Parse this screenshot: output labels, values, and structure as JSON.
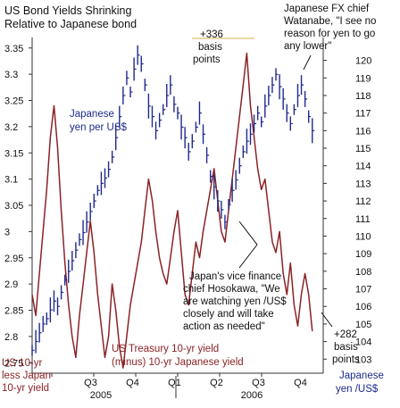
{
  "chart_data": {
    "type": "line",
    "title": "US Bond Yields Shrinking",
    "subtitle": "Relative to Japanese bond",
    "x_ticks": [
      "Q3",
      "Q4",
      "Q1",
      "Q2",
      "Q3",
      "Q4"
    ],
    "x_years": [
      "2005",
      "2006"
    ],
    "y_left": {
      "label": [
        "US 10-yr",
        "less Japan",
        "10-yr yield"
      ],
      "ticks": [
        "3.35",
        "3.3",
        "3.25",
        "3.2",
        "3.15",
        "3.1",
        "3.05",
        "3",
        "2.95",
        "2.9",
        "2.85",
        "2.8",
        "2.75"
      ],
      "ylim": [
        2.73,
        3.37
      ]
    },
    "y_right": {
      "label": [
        "Japanese",
        "yen /US$"
      ],
      "ticks": [
        "120",
        "119",
        "118",
        "117",
        "116",
        "115",
        "114",
        "113",
        "112",
        "111",
        "110",
        "109",
        "108",
        "107",
        "106",
        "105",
        "104",
        "103"
      ],
      "ylim": [
        102.2,
        121.3
      ]
    },
    "xlim": [
      0,
      24
    ],
    "series": [
      {
        "name": "US Treasury 10-yr yield (minus) 10-yr Japanese yield",
        "axis": "left",
        "color": "#8b2226",
        "x": [
          0.0,
          0.3,
          0.6,
          0.9,
          1.2,
          1.5,
          1.8,
          2.1,
          2.4,
          2.7,
          3.0,
          3.3,
          3.6,
          3.9,
          4.2,
          4.5,
          4.8,
          5.1,
          5.4,
          5.7,
          6.0,
          6.3,
          6.6,
          6.9,
          7.2,
          7.5,
          7.8,
          8.1,
          8.4,
          8.7,
          9.0,
          9.3,
          9.6,
          9.9,
          10.2,
          10.5,
          10.8,
          11.1,
          11.4,
          11.7,
          12.0,
          12.3,
          12.6,
          12.9,
          13.2,
          13.5,
          13.8,
          14.1,
          14.4,
          14.7,
          15.0,
          15.3,
          15.6,
          15.9,
          16.2,
          16.5,
          16.8,
          17.1,
          17.4,
          17.7,
          18.0,
          18.3,
          18.6,
          18.9,
          19.2,
          19.5,
          19.8,
          20.1,
          20.4,
          20.7,
          21.0,
          21.3,
          21.6,
          21.9,
          22.2,
          22.5,
          22.8,
          23.1
        ],
        "y": [
          2.88,
          2.84,
          2.92,
          3.0,
          3.08,
          3.18,
          3.24,
          3.16,
          3.04,
          2.94,
          2.86,
          2.8,
          2.76,
          2.84,
          2.9,
          2.96,
          3.02,
          2.96,
          2.88,
          2.82,
          2.76,
          2.8,
          2.9,
          2.85,
          2.78,
          2.74,
          2.8,
          2.86,
          2.9,
          2.94,
          2.98,
          3.04,
          3.1,
          3.06,
          3.0,
          2.95,
          2.92,
          2.9,
          2.95,
          3.0,
          3.04,
          2.96,
          2.88,
          2.86,
          2.92,
          2.98,
          2.95,
          3.0,
          3.04,
          3.08,
          3.12,
          3.06,
          3.0,
          2.98,
          3.04,
          3.1,
          3.16,
          3.22,
          3.28,
          3.34,
          3.24,
          3.18,
          3.12,
          3.08,
          3.1,
          3.04,
          2.98,
          2.96,
          3.0,
          2.92,
          2.88,
          2.94,
          2.86,
          2.82,
          2.88,
          2.92,
          2.88,
          2.81
        ]
      },
      {
        "name": "Japanese yen per US$",
        "axis": "right",
        "color": "#1f2a8c",
        "x": [
          0.0,
          0.3,
          0.6,
          0.9,
          1.2,
          1.5,
          1.8,
          2.1,
          2.4,
          2.7,
          3.0,
          3.3,
          3.6,
          3.9,
          4.2,
          4.5,
          4.8,
          5.1,
          5.4,
          5.7,
          6.0,
          6.3,
          6.6,
          6.9,
          7.2,
          7.5,
          7.8,
          8.1,
          8.4,
          8.7,
          9.0,
          9.3,
          9.6,
          9.9,
          10.2,
          10.5,
          10.8,
          11.1,
          11.4,
          11.7,
          12.0,
          12.3,
          12.6,
          12.9,
          13.2,
          13.5,
          13.8,
          14.1,
          14.4,
          14.7,
          15.0,
          15.3,
          15.6,
          15.9,
          16.2,
          16.5,
          16.8,
          17.1,
          17.4,
          17.7,
          18.0,
          18.3,
          18.6,
          18.9,
          19.2,
          19.5,
          19.8,
          20.1,
          20.4,
          20.7,
          21.0,
          21.3,
          21.6,
          21.9,
          22.2,
          22.5,
          22.8,
          23.1
        ],
        "y": [
          103.5,
          104.0,
          104.5,
          105.0,
          105.3,
          105.8,
          106.3,
          106.0,
          106.8,
          107.5,
          108.0,
          108.6,
          109.2,
          109.8,
          110.2,
          110.8,
          111.4,
          112.0,
          112.6,
          113.0,
          113.3,
          113.8,
          114.5,
          115.6,
          116.8,
          118.0,
          119.0,
          118.2,
          119.5,
          120.3,
          119.8,
          118.6,
          117.4,
          116.8,
          116.0,
          116.6,
          117.2,
          118.0,
          118.6,
          117.5,
          117.0,
          116.2,
          115.6,
          114.8,
          115.4,
          116.2,
          117.0,
          115.8,
          114.6,
          113.4,
          112.8,
          112.0,
          111.5,
          110.8,
          111.8,
          112.6,
          113.2,
          114.0,
          114.8,
          115.4,
          115.8,
          116.4,
          117.0,
          116.5,
          117.4,
          118.0,
          118.6,
          119.2,
          118.5,
          117.8,
          117.0,
          116.4,
          117.2,
          118.0,
          118.6,
          117.8,
          116.8,
          116.0
        ]
      }
    ],
    "annotations": [
      {
        "id": "ann-bp-top",
        "lines": [
          "+336",
          "basis",
          "points"
        ]
      },
      {
        "id": "ann-watanabe",
        "lines": [
          "Japanese FX chief",
          "Watanabe, \"I see no",
          "reason for yen to go",
          "any lower\""
        ]
      },
      {
        "id": "ann-hosokawa",
        "lines": [
          "Japan's vice finance",
          "chief Hosokawa, \"We",
          "are watching yen /US$",
          "closely and will take",
          "action as needed\""
        ]
      },
      {
        "id": "ann-bp-bottom",
        "lines": [
          "+282",
          "basis",
          "points"
        ]
      }
    ],
    "grid": false,
    "legend": "none"
  }
}
